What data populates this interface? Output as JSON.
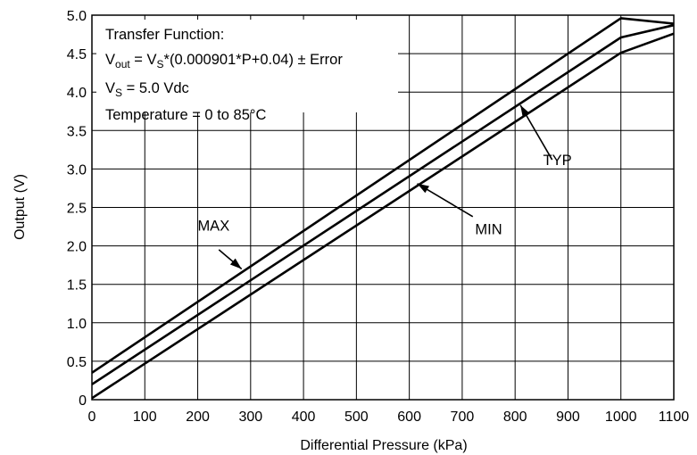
{
  "chart_data": {
    "type": "line",
    "title": "",
    "xlabel": "Differential Pressure (kPa)",
    "ylabel": "Output (V)",
    "xlim": [
      0,
      1100
    ],
    "ylim": [
      0,
      5.0
    ],
    "x_ticks": [
      0,
      100,
      200,
      300,
      400,
      500,
      600,
      700,
      800,
      900,
      1000,
      1100
    ],
    "y_ticks": [
      "0",
      "0.5",
      "1.0",
      "1.5",
      "2.0",
      "2.5",
      "3.0",
      "3.5",
      "4.0",
      "4.5",
      "5.0"
    ],
    "grid": true,
    "series": [
      {
        "name": "MAX",
        "x": [
          0,
          1000,
          1100
        ],
        "y": [
          0.35,
          4.96,
          4.89
        ]
      },
      {
        "name": "TYP",
        "x": [
          0,
          1000,
          1100
        ],
        "y": [
          0.2,
          4.71,
          4.87
        ]
      },
      {
        "name": "MIN",
        "x": [
          0,
          1000,
          1100
        ],
        "y": [
          0.02,
          4.51,
          4.76
        ]
      }
    ],
    "annotation": {
      "line1": "Transfer Function:",
      "line2_prefix": "V",
      "line2_sub1": "out",
      "line2_mid": " = V",
      "line2_sub2": "S",
      "line2_suffix": "*(0.000901*P+0.04) ± Error",
      "line3_prefix": "V",
      "line3_sub": "S",
      "line3_suffix": " = 5.0 Vdc",
      "line4": "Temperature = 0 to 85°C"
    },
    "labels": [
      {
        "text": "MAX",
        "x": 230,
        "y": 2.2,
        "arrow_from": [
          240,
          1.95
        ],
        "arrow_to": [
          283,
          1.7
        ]
      },
      {
        "text": "TYP",
        "x": 880,
        "y": 3.05,
        "arrow_from": [
          870,
          3.12
        ],
        "arrow_to": [
          810,
          3.83
        ]
      },
      {
        "text": "MIN",
        "x": 750,
        "y": 2.15,
        "arrow_from": [
          720,
          2.38
        ],
        "arrow_to": [
          615,
          2.81
        ]
      }
    ]
  }
}
